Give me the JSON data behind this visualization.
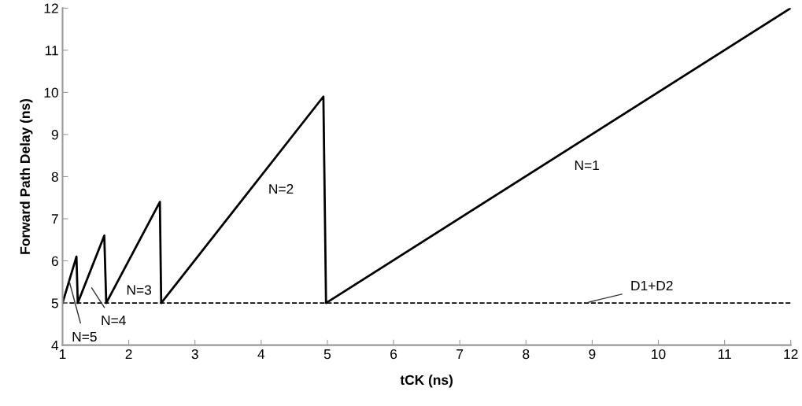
{
  "chart_data": {
    "type": "line",
    "xlabel": "tCK (ns)",
    "ylabel": "Forward Path Delay (ns)",
    "x": [
      1,
      1.21,
      1.23,
      1.63,
      1.66,
      2.47,
      2.49,
      4.94,
      4.98,
      12
    ],
    "series": [
      {
        "color": "#000000",
        "values": [
          5,
          6.1,
          5,
          6.6,
          5,
          7.4,
          5,
          9.9,
          5,
          12
        ]
      }
    ],
    "xlim": [
      1,
      12
    ],
    "xticks": [
      1,
      2,
      3,
      4,
      5,
      6,
      7,
      8,
      9,
      10,
      11,
      12
    ],
    "ylim": [
      4,
      12
    ],
    "yticks": [
      4,
      5,
      6,
      7,
      8,
      9,
      10,
      11,
      12
    ],
    "grid": false,
    "legend": false,
    "marker": "none",
    "line_style": "solid",
    "ref_lines": [
      {
        "axis": "y",
        "value": 5,
        "color": "#000000",
        "line_style": "dashed"
      }
    ],
    "annotations": [
      "N=1",
      "N=2",
      "N=3",
      "N=4",
      {
        "text": "N=5",
        "x": 1.1,
        "y": 5.52
      },
      {
        "text": "D1+D2",
        "x": 8.95,
        "y": 5.02
      }
    ]
  }
}
